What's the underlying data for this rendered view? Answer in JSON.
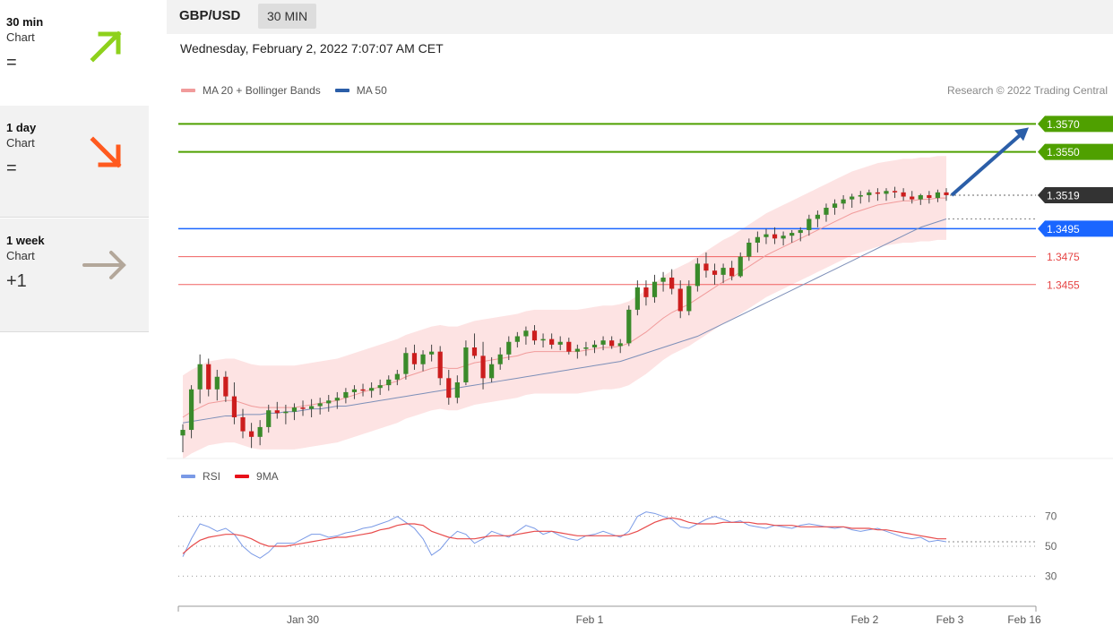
{
  "summary": [
    {
      "timeframe": "30 min",
      "label": "Chart",
      "signal": "=",
      "direction": "up",
      "color": "#8ed11c"
    },
    {
      "timeframe": "1 day",
      "label": "Chart",
      "signal": "=",
      "direction": "down",
      "color": "#ff5a1f"
    },
    {
      "timeframe": "1 week",
      "label": "Chart",
      "signal": "+1",
      "direction": "right",
      "color": "#b3a79a"
    }
  ],
  "header": {
    "symbol": "GBP/USD",
    "timeframe": "30 MIN"
  },
  "datetime": "Wednesday, February 2, 2022 7:07:07 AM CET",
  "copyright": "Research © 2022 Trading Central",
  "colors": {
    "up_candle": "#3a8a2a",
    "down_candle": "#cc1d1d",
    "bollinger_fill": "#fde3e3",
    "ma20": "#f19b9b",
    "ma50": "#7d8fb8",
    "green_level": "#4fa000",
    "blue_level": "#1a66ff",
    "red_level": "#f06060",
    "arrow": "#2b5ea8",
    "rsi": "#7a9ae6",
    "rsi_ma": "#e84c4c",
    "last_price_bg": "#333333"
  },
  "chart_data": [
    {
      "type": "candlestick",
      "title": "GBP/USD",
      "legend": [
        "MA 20 + Bollinger Bands",
        "MA 50"
      ],
      "ylim": [
        1.3335,
        1.3585
      ],
      "x_ticks": [
        "Jan 30",
        "Feb 1",
        "Feb 2",
        "Feb 3",
        "Feb 16"
      ],
      "last_price": 1.3519,
      "levels": [
        {
          "value": 1.357,
          "label": "1.3570",
          "kind": "resistance"
        },
        {
          "value": 1.355,
          "label": "1.3550",
          "kind": "resistance"
        },
        {
          "value": 1.3495,
          "label": "1.3495",
          "kind": "pivot"
        },
        {
          "value": 1.3475,
          "label": "1.3475",
          "kind": "support"
        },
        {
          "value": 1.3455,
          "label": "1.3455",
          "kind": "support"
        }
      ],
      "ohlc": [
        [
          1.3347,
          1.3355,
          1.3335,
          1.3351
        ],
        [
          1.3351,
          1.3383,
          1.3345,
          1.338
        ],
        [
          1.338,
          1.3405,
          1.337,
          1.3398
        ],
        [
          1.3398,
          1.3402,
          1.3375,
          1.338
        ],
        [
          1.338,
          1.3394,
          1.3372,
          1.3389
        ],
        [
          1.3389,
          1.3393,
          1.3371,
          1.3375
        ],
        [
          1.3375,
          1.3385,
          1.3355,
          1.336
        ],
        [
          1.336,
          1.3366,
          1.3345,
          1.335
        ],
        [
          1.335,
          1.3356,
          1.3338,
          1.3346
        ],
        [
          1.3346,
          1.3358,
          1.334,
          1.3353
        ],
        [
          1.3353,
          1.3369,
          1.3349,
          1.3365
        ],
        [
          1.3365,
          1.3371,
          1.3359,
          1.3363
        ],
        [
          1.3363,
          1.3369,
          1.3355,
          1.3364
        ],
        [
          1.3364,
          1.337,
          1.3358,
          1.3367
        ],
        [
          1.3367,
          1.3372,
          1.3361,
          1.3366
        ],
        [
          1.3366,
          1.3373,
          1.336,
          1.3368
        ],
        [
          1.3368,
          1.3374,
          1.3362,
          1.337
        ],
        [
          1.337,
          1.3376,
          1.3364,
          1.3372
        ],
        [
          1.3372,
          1.3378,
          1.3366,
          1.3374
        ],
        [
          1.3374,
          1.3381,
          1.337,
          1.3378
        ],
        [
          1.3378,
          1.3383,
          1.3373,
          1.338
        ],
        [
          1.338,
          1.3384,
          1.3375,
          1.3379
        ],
        [
          1.3379,
          1.3385,
          1.3374,
          1.3381
        ],
        [
          1.3381,
          1.3387,
          1.3376,
          1.3383
        ],
        [
          1.3383,
          1.339,
          1.3379,
          1.3387
        ],
        [
          1.3387,
          1.3394,
          1.3383,
          1.3391
        ],
        [
          1.3391,
          1.341,
          1.3387,
          1.3406
        ],
        [
          1.3406,
          1.3412,
          1.3394,
          1.3398
        ],
        [
          1.3398,
          1.3408,
          1.3393,
          1.3405
        ],
        [
          1.3405,
          1.3412,
          1.34,
          1.3407
        ],
        [
          1.3407,
          1.3411,
          1.3383,
          1.3388
        ],
        [
          1.3388,
          1.3394,
          1.3369,
          1.3374
        ],
        [
          1.3374,
          1.339,
          1.337,
          1.3385
        ],
        [
          1.3385,
          1.3415,
          1.3383,
          1.341
        ],
        [
          1.341,
          1.342,
          1.3402,
          1.3404
        ],
        [
          1.3404,
          1.3414,
          1.338,
          1.3388
        ],
        [
          1.3388,
          1.3403,
          1.3385,
          1.3398
        ],
        [
          1.3398,
          1.341,
          1.3394,
          1.3405
        ],
        [
          1.3405,
          1.3418,
          1.3401,
          1.3414
        ],
        [
          1.3414,
          1.3421,
          1.341,
          1.3418
        ],
        [
          1.3418,
          1.3425,
          1.3412,
          1.3422
        ],
        [
          1.3422,
          1.3426,
          1.3412,
          1.3415
        ],
        [
          1.3415,
          1.342,
          1.341,
          1.3416
        ],
        [
          1.3416,
          1.342,
          1.3409,
          1.3412
        ],
        [
          1.3412,
          1.3418,
          1.3408,
          1.3414
        ],
        [
          1.3414,
          1.3417,
          1.3405,
          1.3407
        ],
        [
          1.3407,
          1.3412,
          1.3402,
          1.3409
        ],
        [
          1.3409,
          1.3414,
          1.3404,
          1.341
        ],
        [
          1.341,
          1.3415,
          1.3406,
          1.3412
        ],
        [
          1.3412,
          1.3418,
          1.3408,
          1.3415
        ],
        [
          1.3415,
          1.3418,
          1.3409,
          1.3411
        ],
        [
          1.3411,
          1.3416,
          1.3406,
          1.3413
        ],
        [
          1.3413,
          1.344,
          1.3411,
          1.3437
        ],
        [
          1.3437,
          1.3458,
          1.3433,
          1.3453
        ],
        [
          1.3453,
          1.3458,
          1.344,
          1.3446
        ],
        [
          1.3446,
          1.3462,
          1.3442,
          1.3457
        ],
        [
          1.3457,
          1.3464,
          1.345,
          1.346
        ],
        [
          1.346,
          1.3466,
          1.3448,
          1.3452
        ],
        [
          1.3452,
          1.3458,
          1.3431,
          1.3436
        ],
        [
          1.3436,
          1.3458,
          1.3433,
          1.3454
        ],
        [
          1.3454,
          1.3474,
          1.345,
          1.347
        ],
        [
          1.347,
          1.3478,
          1.346,
          1.3465
        ],
        [
          1.3465,
          1.347,
          1.3455,
          1.3462
        ],
        [
          1.3462,
          1.347,
          1.3456,
          1.3467
        ],
        [
          1.3467,
          1.3472,
          1.3458,
          1.3461
        ],
        [
          1.3461,
          1.3478,
          1.346,
          1.3475
        ],
        [
          1.3475,
          1.3488,
          1.3472,
          1.3485
        ],
        [
          1.3485,
          1.3493,
          1.3478,
          1.3489
        ],
        [
          1.3489,
          1.3495,
          1.3484,
          1.3491
        ],
        [
          1.3491,
          1.3496,
          1.3484,
          1.3488
        ],
        [
          1.3488,
          1.3493,
          1.3483,
          1.349
        ],
        [
          1.349,
          1.3494,
          1.3485,
          1.3492
        ],
        [
          1.3492,
          1.3496,
          1.3486,
          1.3494
        ],
        [
          1.3494,
          1.3505,
          1.349,
          1.3502
        ],
        [
          1.3502,
          1.3508,
          1.3496,
          1.3505
        ],
        [
          1.3505,
          1.3513,
          1.35,
          1.351
        ],
        [
          1.351,
          1.3516,
          1.3505,
          1.3513
        ],
        [
          1.3513,
          1.3519,
          1.3509,
          1.3516
        ],
        [
          1.3516,
          1.352,
          1.351,
          1.3518
        ],
        [
          1.3518,
          1.3522,
          1.3513,
          1.3519
        ],
        [
          1.3519,
          1.3523,
          1.3514,
          1.3521
        ],
        [
          1.3521,
          1.3524,
          1.3515,
          1.352
        ],
        [
          1.352,
          1.3524,
          1.3515,
          1.3522
        ],
        [
          1.3522,
          1.3525,
          1.3517,
          1.3521
        ],
        [
          1.3521,
          1.3524,
          1.3515,
          1.3518
        ],
        [
          1.3518,
          1.3522,
          1.3513,
          1.3516
        ],
        [
          1.3516,
          1.352,
          1.3512,
          1.3519
        ],
        [
          1.3519,
          1.3522,
          1.3513,
          1.3517
        ],
        [
          1.3517,
          1.3523,
          1.3514,
          1.3521
        ],
        [
          1.3521,
          1.3524,
          1.3515,
          1.3519
        ]
      ],
      "ma20": [
        1.336,
        1.3364,
        1.3367,
        1.337,
        1.3371,
        1.3372,
        1.3372,
        1.337,
        1.3368,
        1.3367,
        1.3367,
        1.3367,
        1.3367,
        1.3367,
        1.3368,
        1.3369,
        1.337,
        1.3371,
        1.3372,
        1.3374,
        1.3376,
        1.3378,
        1.338,
        1.3382,
        1.3384,
        1.3386,
        1.3389,
        1.3391,
        1.3393,
        1.3395,
        1.3396,
        1.3395,
        1.3395,
        1.3397,
        1.3399,
        1.34,
        1.3401,
        1.3402,
        1.3403,
        1.3404,
        1.3406,
        1.3407,
        1.3407,
        1.3407,
        1.3407,
        1.3407,
        1.3407,
        1.3408,
        1.3409,
        1.341,
        1.341,
        1.3411,
        1.3413,
        1.3417,
        1.3421,
        1.3426,
        1.3431,
        1.3435,
        1.3438,
        1.3441,
        1.3445,
        1.3449,
        1.3453,
        1.3457,
        1.346,
        1.3464,
        1.3468,
        1.3472,
        1.3476,
        1.3479,
        1.3482,
        1.3485,
        1.3488,
        1.3491,
        1.3494,
        1.3497,
        1.35,
        1.3503,
        1.3506,
        1.3508,
        1.351,
        1.3512,
        1.3513,
        1.3514,
        1.3515,
        1.3515,
        1.3516,
        1.3516,
        1.3517,
        1.3517
      ],
      "ma50": [
        1.3356,
        1.3357,
        1.3358,
        1.3359,
        1.336,
        1.3361,
        1.3361,
        1.3362,
        1.3362,
        1.3362,
        1.3363,
        1.3363,
        1.3364,
        1.3364,
        1.3365,
        1.3366,
        1.3366,
        1.3367,
        1.3368,
        1.3368,
        1.3369,
        1.337,
        1.3371,
        1.3372,
        1.3373,
        1.3374,
        1.3375,
        1.3376,
        1.3377,
        1.3378,
        1.3379,
        1.338,
        1.3381,
        1.3382,
        1.3383,
        1.3384,
        1.3385,
        1.3386,
        1.3387,
        1.3388,
        1.3389,
        1.339,
        1.3391,
        1.3392,
        1.3393,
        1.3394,
        1.3395,
        1.3396,
        1.3397,
        1.3398,
        1.3399,
        1.34,
        1.3402,
        1.3404,
        1.3406,
        1.3408,
        1.341,
        1.3412,
        1.3414,
        1.3416,
        1.3418,
        1.3421,
        1.3424,
        1.3427,
        1.343,
        1.3433,
        1.3436,
        1.3439,
        1.3442,
        1.3445,
        1.3448,
        1.3451,
        1.3454,
        1.3457,
        1.346,
        1.3463,
        1.3466,
        1.3469,
        1.3472,
        1.3475,
        1.3478,
        1.3481,
        1.3484,
        1.3487,
        1.349,
        1.3493,
        1.3496,
        1.3498,
        1.35,
        1.3502
      ],
      "bb_width": 0.003
    },
    {
      "type": "line",
      "title": "RSI",
      "legend": [
        "RSI",
        "9MA"
      ],
      "ylim": [
        20,
        80
      ],
      "y_ticks": [
        70,
        50,
        30
      ],
      "series": [
        {
          "name": "RSI",
          "values": [
            43,
            55,
            65,
            63,
            60,
            62,
            58,
            50,
            45,
            42,
            46,
            52,
            52,
            52,
            55,
            58,
            58,
            56,
            57,
            59,
            60,
            62,
            63,
            65,
            67,
            70,
            66,
            62,
            55,
            44,
            48,
            55,
            60,
            58,
            52,
            55,
            60,
            58,
            56,
            60,
            64,
            62,
            58,
            60,
            57,
            55,
            54,
            57,
            58,
            60,
            58,
            56,
            60,
            70,
            73,
            72,
            70,
            68,
            63,
            62,
            65,
            68,
            70,
            68,
            66,
            67,
            64,
            63,
            62,
            64,
            63,
            62,
            64,
            65,
            64,
            63,
            62,
            63,
            61,
            60,
            61,
            62,
            60,
            58,
            56,
            55,
            56,
            53,
            54,
            53
          ]
        },
        {
          "name": "9MA",
          "values": [
            45,
            50,
            54,
            56,
            57,
            58,
            58,
            57,
            55,
            52,
            50,
            50,
            50,
            51,
            52,
            53,
            54,
            55,
            56,
            56,
            57,
            58,
            59,
            61,
            62,
            64,
            65,
            65,
            64,
            60,
            58,
            56,
            55,
            55,
            55,
            56,
            57,
            57,
            57,
            58,
            59,
            60,
            60,
            60,
            59,
            58,
            57,
            57,
            57,
            57,
            57,
            57,
            58,
            60,
            63,
            66,
            68,
            69,
            68,
            66,
            65,
            65,
            65,
            66,
            66,
            66,
            66,
            65,
            65,
            64,
            64,
            64,
            63,
            63,
            63,
            63,
            63,
            63,
            62,
            62,
            62,
            61,
            61,
            60,
            59,
            58,
            57,
            56,
            55,
            55
          ]
        }
      ]
    }
  ]
}
